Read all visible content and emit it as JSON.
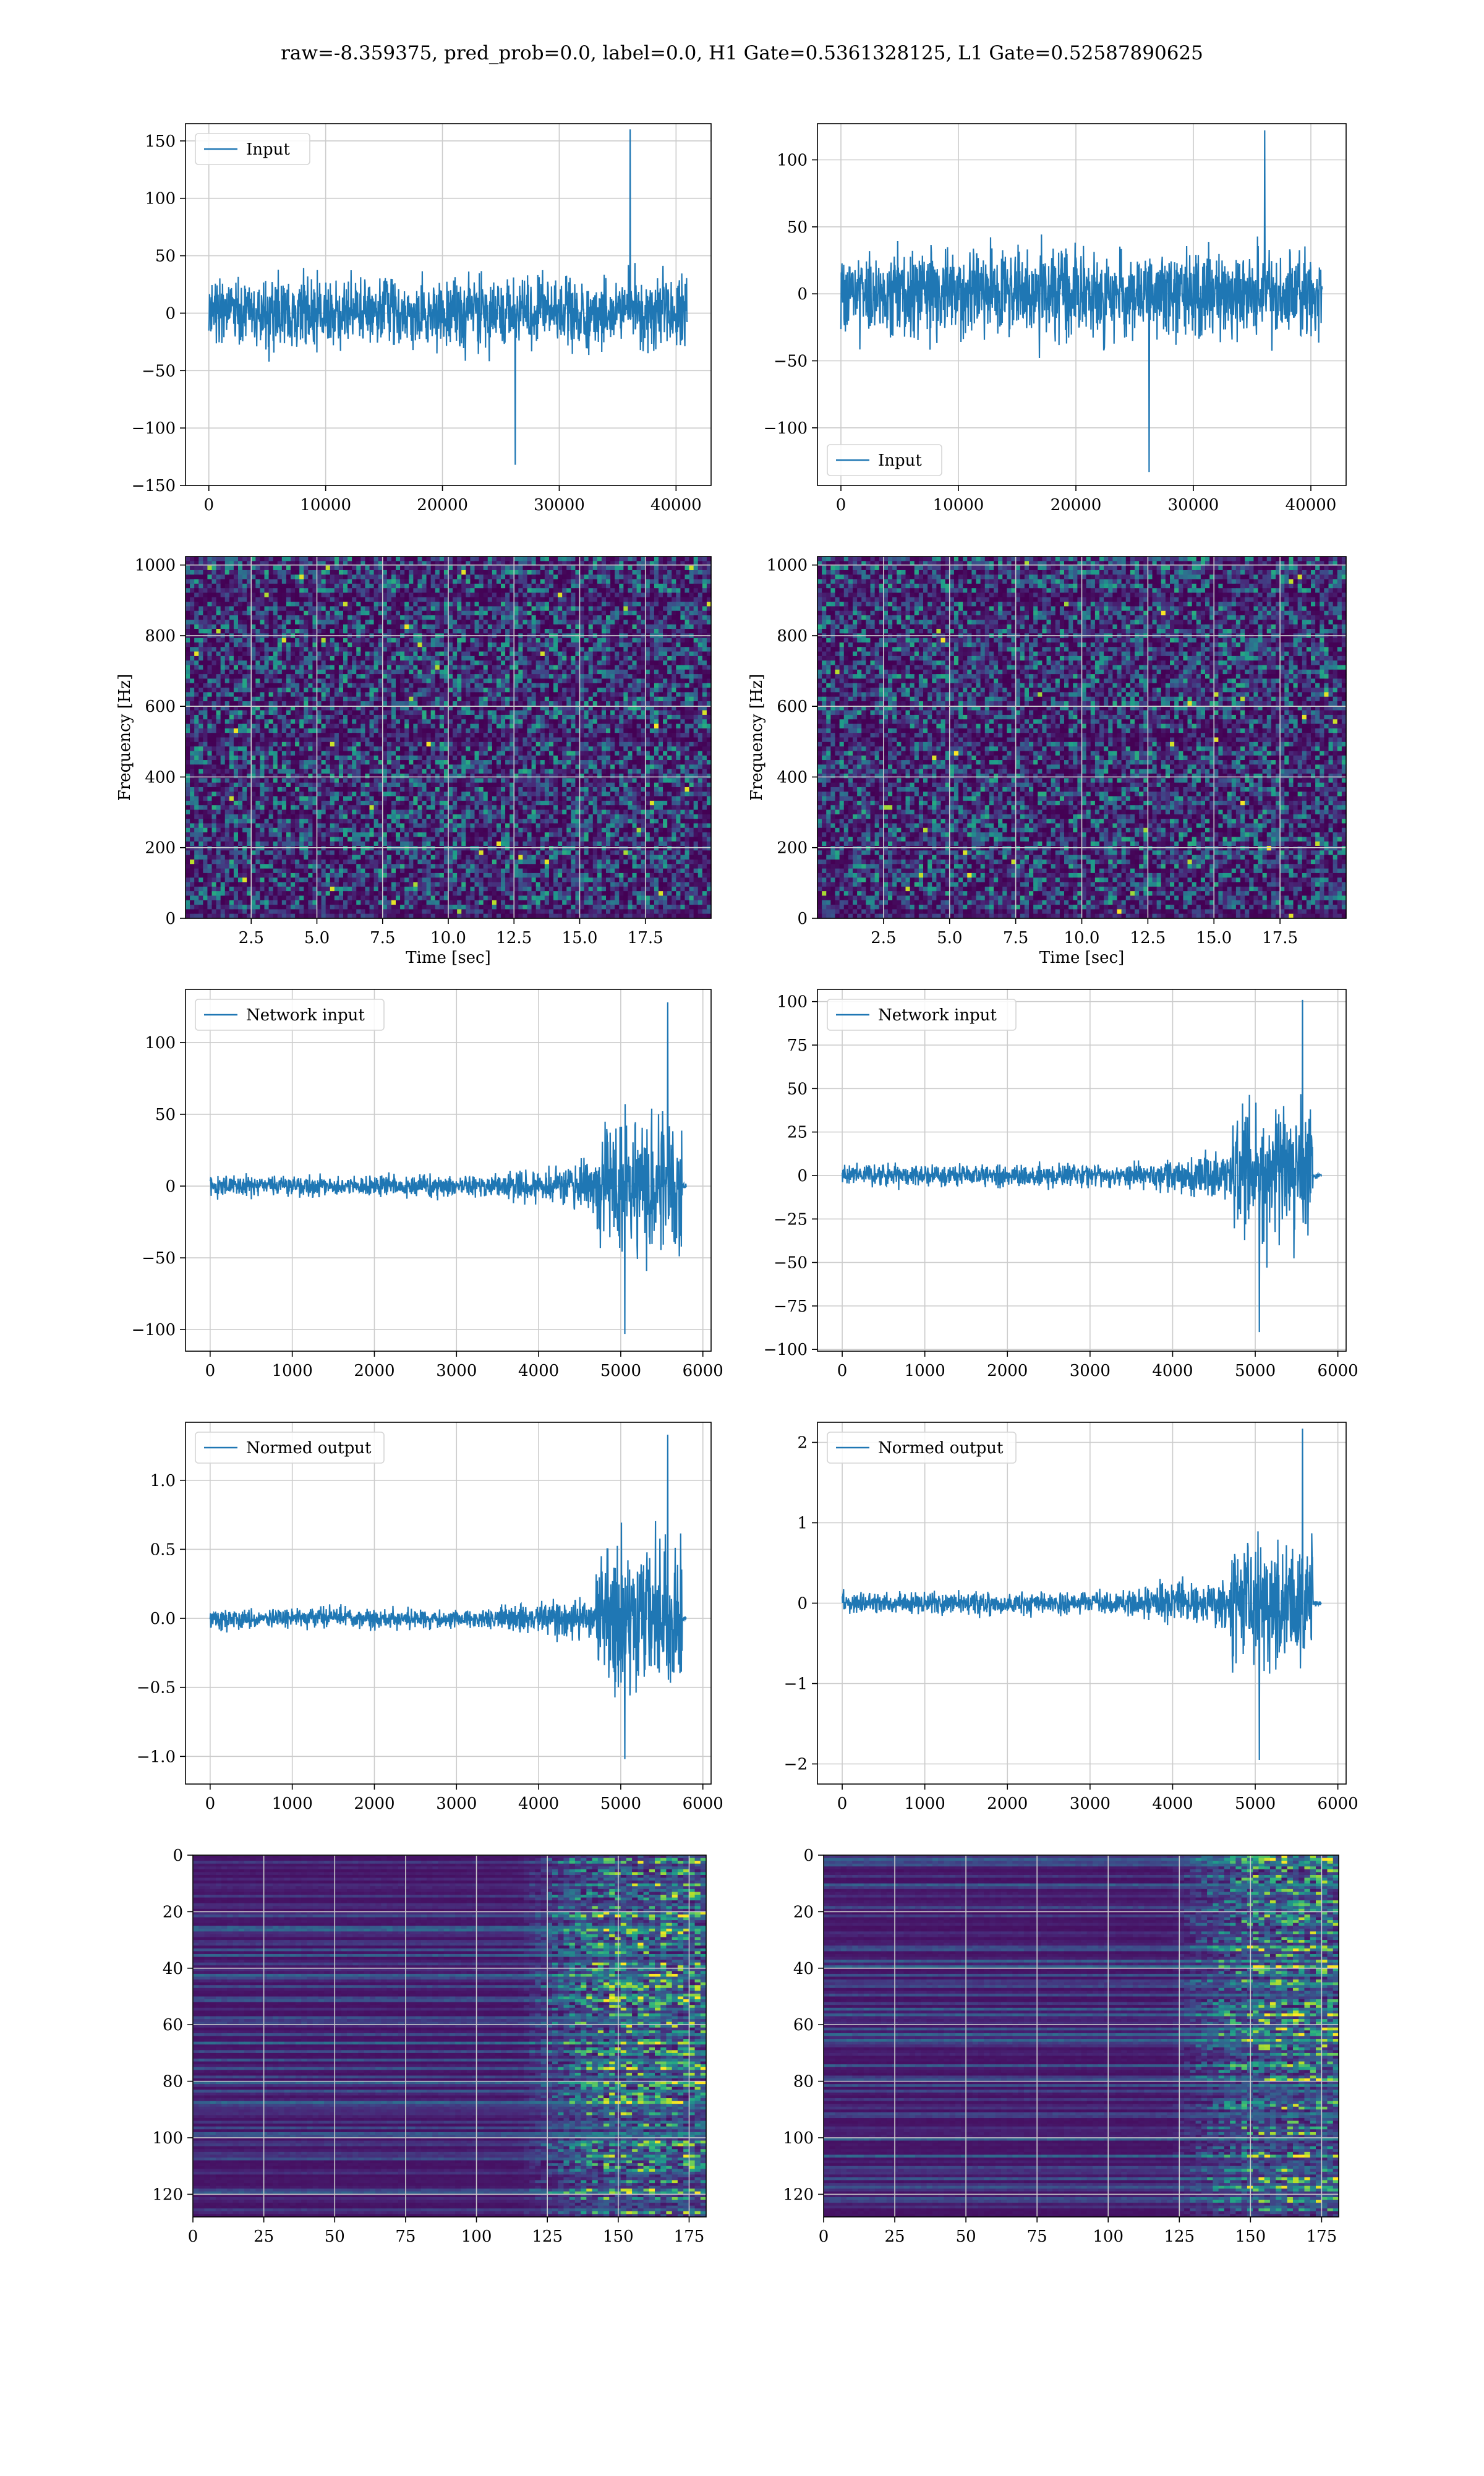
{
  "suptitle": "raw=-8.359375, pred_prob=0.0, label=0.0, H1 Gate=0.5361328125, L1 Gate=0.52587890625",
  "colors": {
    "line": "#1f77b4",
    "grid": "#cccccc",
    "viridis_dark": "#440154",
    "viridis_mid": "#21918c",
    "viridis_bright": "#fde725"
  },
  "chart_data": [
    {
      "id": "h1-input",
      "type": "line",
      "series": [
        {
          "name": "Input",
          "style": "dense-noise",
          "envelope": {
            "x_range": [
              0,
              40960
            ],
            "typical_amplitude": 70,
            "peak_max": 160,
            "peak_min": -132
          }
        }
      ],
      "xlim": [
        -2000,
        43000
      ],
      "ylim": [
        -150,
        165
      ],
      "xticks": [
        0,
        10000,
        20000,
        30000,
        40000
      ],
      "yticks": [
        -150,
        -100,
        -50,
        0,
        50,
        100,
        150
      ],
      "legend": "upper left",
      "grid": true
    },
    {
      "id": "l1-input",
      "type": "line",
      "series": [
        {
          "name": "Input",
          "style": "dense-noise",
          "envelope": {
            "x_range": [
              0,
              40960
            ],
            "typical_amplitude": 75,
            "peak_max": 122,
            "peak_min": -133
          }
        }
      ],
      "xlim": [
        -2000,
        43000
      ],
      "ylim": [
        -143,
        127
      ],
      "xticks": [
        0,
        10000,
        20000,
        30000,
        40000
      ],
      "yticks": [
        -100,
        -50,
        0,
        50,
        100
      ],
      "legend": "lower left",
      "grid": true
    },
    {
      "id": "h1-spectrogram",
      "type": "heatmap",
      "xlabel": "Time [sec]",
      "ylabel": "Frequency [Hz]",
      "xlim": [
        0,
        20
      ],
      "ylim": [
        0,
        1024
      ],
      "xticks": [
        2.5,
        5.0,
        7.5,
        10.0,
        12.5,
        15.0,
        17.5
      ],
      "xtick_labels": [
        "2.5",
        "5.0",
        "7.5",
        "10.0",
        "12.5",
        "15.0",
        "17.5"
      ],
      "yticks": [
        0,
        200,
        400,
        600,
        800,
        1000
      ],
      "colormap": "viridis",
      "grid": true
    },
    {
      "id": "l1-spectrogram",
      "type": "heatmap",
      "xlabel": "Time [sec]",
      "ylabel": "Frequency [Hz]",
      "xlim": [
        0,
        20
      ],
      "ylim": [
        0,
        1024
      ],
      "xticks": [
        2.5,
        5.0,
        7.5,
        10.0,
        12.5,
        15.0,
        17.5
      ],
      "xtick_labels": [
        "2.5",
        "5.0",
        "7.5",
        "10.0",
        "12.5",
        "15.0",
        "17.5"
      ],
      "yticks": [
        0,
        200,
        400,
        600,
        800,
        1000
      ],
      "colormap": "viridis",
      "grid": true
    },
    {
      "id": "h1-network-input",
      "type": "line",
      "series": [
        {
          "name": "Network input",
          "style": "chirp",
          "envelope": {
            "x_range": [
              0,
              5800
            ],
            "base_amplitude": 15,
            "rise_start": 3200,
            "burst_start": 4700,
            "burst_end": 5750,
            "peak_max": 128,
            "peak_min": -103
          }
        }
      ],
      "xlim": [
        -300,
        6100
      ],
      "ylim": [
        -115,
        137
      ],
      "xticks": [
        0,
        1000,
        2000,
        3000,
        4000,
        5000,
        6000
      ],
      "yticks": [
        -100,
        -50,
        0,
        50,
        100
      ],
      "legend": "upper left",
      "grid": true
    },
    {
      "id": "l1-network-input",
      "type": "line",
      "series": [
        {
          "name": "Network input",
          "style": "chirp",
          "envelope": {
            "x_range": [
              0,
              5800
            ],
            "base_amplitude": 13,
            "rise_start": 3200,
            "burst_start": 4700,
            "burst_end": 5700,
            "peak_max": 101,
            "peak_min": -90
          }
        }
      ],
      "xlim": [
        -300,
        6100
      ],
      "ylim": [
        -101,
        107
      ],
      "xticks": [
        0,
        1000,
        2000,
        3000,
        4000,
        5000,
        6000
      ],
      "yticks": [
        -100,
        -75,
        -50,
        -25,
        0,
        25,
        50,
        75,
        100
      ],
      "legend": "upper left",
      "grid": true
    },
    {
      "id": "h1-normed-output",
      "type": "line",
      "series": [
        {
          "name": "Normed output",
          "style": "chirp",
          "envelope": {
            "x_range": [
              0,
              5800
            ],
            "base_amplitude": 0.15,
            "rise_start": 3200,
            "burst_start": 4700,
            "burst_end": 5750,
            "peak_max": 1.33,
            "peak_min": -1.02
          }
        }
      ],
      "xlim": [
        -300,
        6100
      ],
      "ylim": [
        -1.2,
        1.42
      ],
      "xticks": [
        0,
        1000,
        2000,
        3000,
        4000,
        5000,
        6000
      ],
      "yticks": [
        -1.0,
        -0.5,
        0.0,
        0.5,
        1.0
      ],
      "ytick_labels": [
        "−1.0",
        "−0.5",
        "0.0",
        "0.5",
        "1.0"
      ],
      "legend": "upper left",
      "grid": true
    },
    {
      "id": "l1-normed-output",
      "type": "line",
      "series": [
        {
          "name": "Normed output",
          "style": "chirp",
          "envelope": {
            "x_range": [
              0,
              5800
            ],
            "base_amplitude": 0.3,
            "rise_start": 3200,
            "burst_start": 4700,
            "burst_end": 5700,
            "peak_max": 2.17,
            "peak_min": -1.95
          }
        }
      ],
      "xlim": [
        -300,
        6100
      ],
      "ylim": [
        -2.25,
        2.25
      ],
      "xticks": [
        0,
        1000,
        2000,
        3000,
        4000,
        5000,
        6000
      ],
      "yticks": [
        -2,
        -1,
        0,
        1,
        2
      ],
      "legend": "upper left",
      "grid": true
    },
    {
      "id": "h1-feature-map",
      "type": "heatmap",
      "xlim": [
        0,
        181
      ],
      "ylim": [
        128,
        0
      ],
      "xticks": [
        0,
        25,
        50,
        75,
        100,
        125,
        150,
        175
      ],
      "yticks": [
        0,
        20,
        40,
        60,
        80,
        100,
        120
      ],
      "colormap": "viridis",
      "grid": true,
      "activity_onset_x": 115
    },
    {
      "id": "l1-feature-map",
      "type": "heatmap",
      "xlim": [
        0,
        181
      ],
      "ylim": [
        128,
        0
      ],
      "xticks": [
        0,
        25,
        50,
        75,
        100,
        125,
        150,
        175
      ],
      "yticks": [
        0,
        20,
        40,
        60,
        80,
        100,
        120
      ],
      "colormap": "viridis",
      "grid": true,
      "activity_onset_x": 122
    }
  ]
}
